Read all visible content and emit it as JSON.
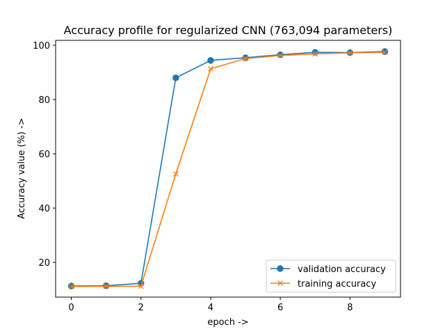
{
  "chart_data": {
    "type": "line",
    "title": "Accuracy profile for regularized CNN (763,094 parameters)",
    "xlabel": "epoch ->",
    "ylabel": "Accuracy value (%) ->",
    "x": [
      0,
      1,
      2,
      3,
      4,
      5,
      6,
      7,
      8,
      9
    ],
    "xlim": [
      -0.45,
      9.45
    ],
    "ylim": [
      7.2,
      101.8
    ],
    "xticks": [
      0,
      2,
      4,
      6,
      8
    ],
    "yticks": [
      20,
      40,
      60,
      80,
      100
    ],
    "grid": false,
    "legend_position": "lower-right",
    "series": [
      {
        "name": "validation accuracy",
        "marker": "circle",
        "color": "#1f77b4",
        "values": [
          11.3,
          11.4,
          12.3,
          88.0,
          94.4,
          95.4,
          96.5,
          97.4,
          97.3,
          97.7
        ]
      },
      {
        "name": "training accuracy",
        "marker": "x",
        "color": "#ff7f0e",
        "values": [
          11.1,
          11.2,
          11.2,
          52.6,
          91.3,
          95.1,
          96.2,
          96.8,
          97.2,
          97.4
        ]
      }
    ]
  }
}
